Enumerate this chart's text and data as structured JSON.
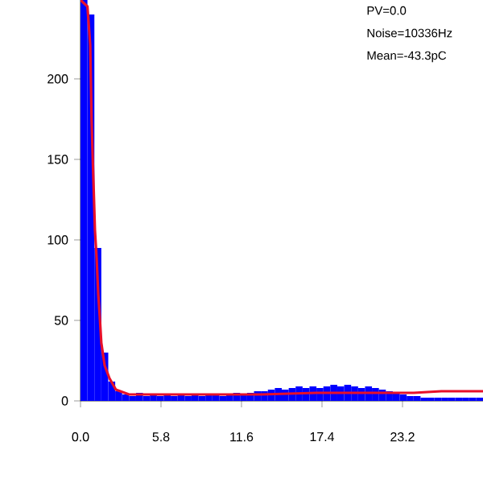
{
  "chart_data": {
    "type": "histogram",
    "series": [
      {
        "type": "histogram",
        "color": "#0000ff",
        "bins": [
          0,
          0.5,
          1,
          1.5,
          2,
          2.5,
          3,
          3.5,
          4,
          4.5,
          5,
          5.5,
          6,
          6.5,
          7,
          7.5,
          8,
          8.5,
          9,
          9.5,
          10,
          10.5,
          11,
          11.5,
          12,
          12.5,
          13,
          13.5,
          14,
          14.5,
          15,
          15.5,
          16,
          16.5,
          17,
          17.5,
          18,
          18.5,
          19,
          19.5,
          20,
          20.5,
          21,
          21.5,
          22,
          22.5,
          23,
          23.5,
          24,
          24.5,
          25,
          25.5,
          26,
          26.5,
          27,
          27.5,
          28,
          28.5,
          29
        ],
        "values": [
          249,
          240,
          95,
          30,
          12,
          6,
          4,
          3,
          5,
          3,
          4,
          3,
          4,
          3,
          4,
          3,
          4,
          3,
          4,
          4,
          3,
          4,
          5,
          4,
          5,
          6,
          6,
          7,
          8,
          7,
          8,
          9,
          8,
          9,
          8,
          9,
          10,
          9,
          10,
          9,
          8,
          9,
          8,
          7,
          6,
          5,
          4,
          3,
          3,
          2,
          2,
          2,
          2,
          2,
          2,
          2,
          2,
          2
        ]
      },
      {
        "type": "line",
        "color": "#e8102a",
        "x": [
          0,
          0.5,
          0.7,
          0.8,
          0.93,
          1.04,
          1.16,
          1.28,
          1.39,
          1.5,
          1.74,
          2.09,
          2.55,
          3.5,
          6,
          10,
          13,
          17,
          21,
          24,
          26,
          29
        ],
        "values": [
          249,
          245,
          221,
          174,
          137,
          106,
          89,
          66,
          52,
          36,
          22,
          14,
          7,
          4,
          4,
          4,
          4,
          5,
          5,
          5,
          6,
          6
        ]
      }
    ],
    "xlim": [
      0,
      29
    ],
    "ylim": [
      0,
      249
    ],
    "xticks": [
      {
        "value": 0,
        "label": "0.0"
      },
      5.8,
      11.6,
      17.4,
      23.2
    ],
    "yticks": [
      0,
      50,
      100,
      150,
      200
    ],
    "annotations": [
      "PV=0.0",
      "Noise=10336Hz",
      "Mean=-43.3pC"
    ]
  }
}
